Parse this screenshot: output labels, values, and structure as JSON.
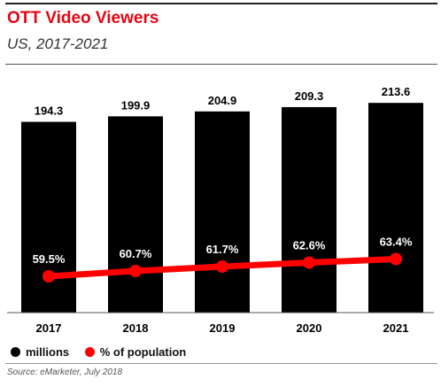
{
  "chart_data": {
    "type": "bar",
    "title": "OTT Video Viewers",
    "subtitle": "US, 2017-2021",
    "categories": [
      "2017",
      "2018",
      "2019",
      "2020",
      "2021"
    ],
    "series": [
      {
        "name": "millions",
        "type": "bar",
        "values": [
          194.3,
          199.9,
          204.9,
          209.3,
          213.6
        ],
        "labels": [
          "194.3",
          "199.9",
          "204.9",
          "209.3",
          "213.6"
        ],
        "color": "#000000"
      },
      {
        "name": "% of population",
        "type": "line",
        "values": [
          59.5,
          60.7,
          61.7,
          62.6,
          63.4
        ],
        "labels": [
          "59.5%",
          "60.7%",
          "61.7%",
          "62.6%",
          "63.4%"
        ],
        "color": "#ff0000"
      }
    ],
    "bar_axis_range": [
      0,
      230
    ],
    "line_axis_range": [
      0,
      100
    ],
    "grid": false,
    "legend_position": "bottom-left",
    "source": "Source: eMarketer, July 2018"
  },
  "colors": {
    "title": "#e30613",
    "bar": "#000000",
    "line": "#ff0000"
  }
}
